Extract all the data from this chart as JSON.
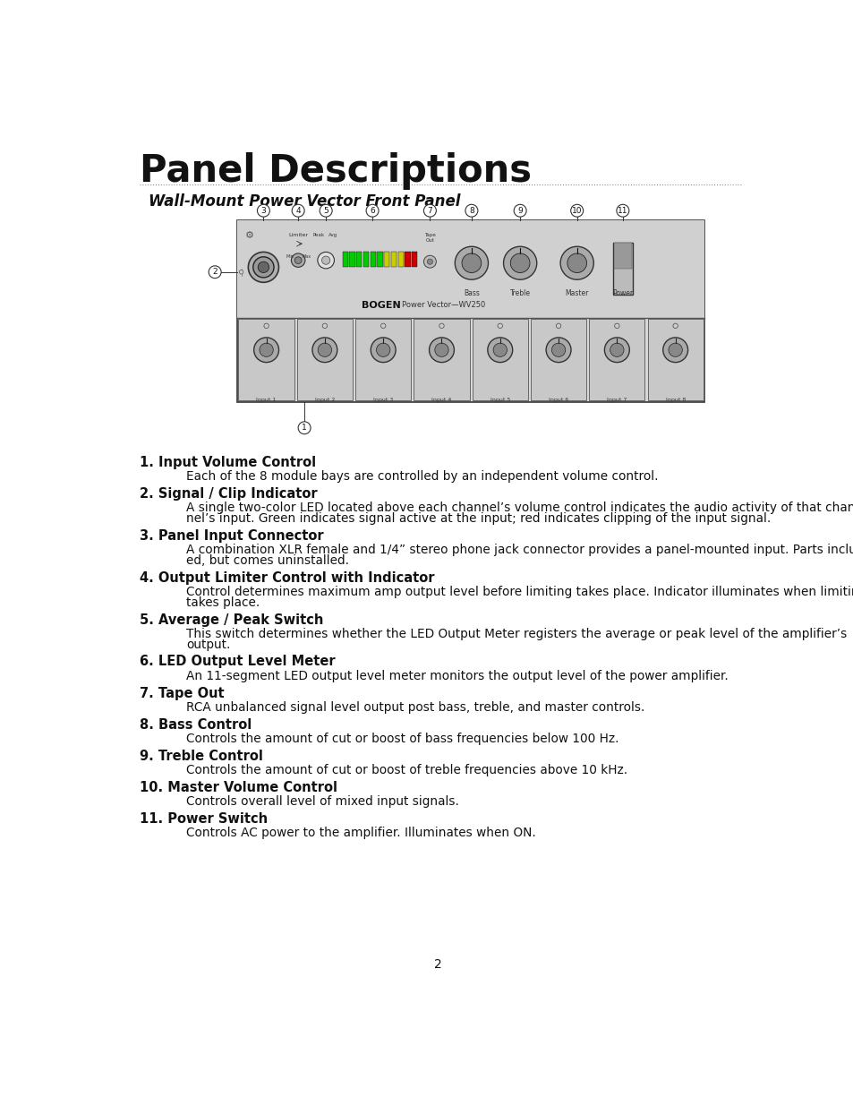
{
  "title": "Panel Descriptions",
  "subtitle": "Wall-Mount Power Vector Front Panel",
  "bg_color": "#ffffff",
  "text_color": "#1a1a1a",
  "page_number": "2",
  "items": [
    {
      "number": "1",
      "heading": "Input Volume Control",
      "body": "Each of the 8 module bays are controlled by an independent volume control."
    },
    {
      "number": "2",
      "heading": "Signal / Clip Indicator",
      "body": "A single two-color LED located above each channel’s volume control indicates the audio activity of that chan-\nnel’s input. Green indicates signal active at the input; red indicates clipping of the input signal."
    },
    {
      "number": "3",
      "heading": "Panel Input Connector",
      "body": "A combination XLR female and 1/4” stereo phone jack connector provides a panel-mounted input. Parts includ-\ned, but comes uninstalled."
    },
    {
      "number": "4",
      "heading": "Output Limiter Control with Indicator",
      "body": "Control determines maximum amp output level before limiting takes place. Indicator illuminates when limiting\ntakes place."
    },
    {
      "number": "5",
      "heading": "Average / Peak Switch",
      "body": "This switch determines whether the LED Output Meter registers the average or peak level of the amplifier’s\noutput."
    },
    {
      "number": "6",
      "heading": "LED Output Level Meter",
      "body": "An 11-segment LED output level meter monitors the output level of the power amplifier."
    },
    {
      "number": "7",
      "heading": "Tape Out",
      "body": "RCA unbalanced signal level output post bass, treble, and master controls."
    },
    {
      "number": "8",
      "heading": "Bass Control",
      "body": "Controls the amount of cut or boost of bass frequencies below 100 Hz."
    },
    {
      "number": "9",
      "heading": "Treble Control",
      "body": "Controls the amount of cut or boost of treble frequencies above 10 kHz."
    },
    {
      "number": "10",
      "heading": "Master Volume Control",
      "body": "Controls overall level of mixed input signals."
    },
    {
      "number": "11",
      "heading": "Power Switch",
      "body": "Controls AC power to the amplifier. Illuminates when ON."
    }
  ]
}
